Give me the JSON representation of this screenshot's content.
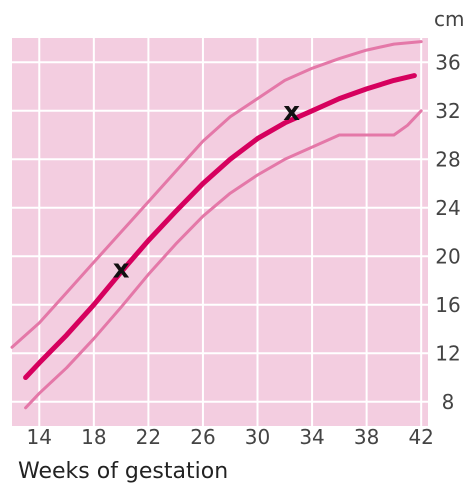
{
  "chart_data": {
    "type": "line",
    "xlabel": "Weeks of gestation",
    "ylabel": "cm",
    "xlim": [
      12,
      42.5
    ],
    "ylim": [
      6,
      38
    ],
    "x_ticks": [
      14,
      18,
      22,
      26,
      30,
      34,
      38,
      42
    ],
    "y_ticks": [
      8,
      12,
      16,
      20,
      24,
      28,
      32,
      36
    ],
    "grid": true,
    "background_color": "#f3cde0",
    "grid_color": "#ffffff",
    "series": [
      {
        "role": "upper-band",
        "color": "#e478a8",
        "x": [
          12,
          14,
          16,
          18,
          20,
          22,
          24,
          26,
          28,
          30,
          32,
          34,
          36,
          38,
          40,
          42
        ],
        "y": [
          12.5,
          14.5,
          17.0,
          19.5,
          22.0,
          24.5,
          27.0,
          29.5,
          31.5,
          33.0,
          34.5,
          35.5,
          36.3,
          37.0,
          37.5,
          37.7
        ]
      },
      {
        "role": "median",
        "color": "#d6005e",
        "x": [
          13,
          14,
          16,
          18,
          20,
          22,
          24,
          26,
          28,
          30,
          32,
          34,
          36,
          38,
          40,
          41.5
        ],
        "y": [
          10.0,
          11.2,
          13.5,
          16.0,
          18.7,
          21.3,
          23.7,
          26.0,
          28.0,
          29.7,
          31.0,
          32.0,
          33.0,
          33.8,
          34.5,
          34.9
        ]
      },
      {
        "role": "lower-band",
        "color": "#e478a8",
        "x": [
          13,
          14,
          16,
          18,
          20,
          22,
          24,
          26,
          28,
          30,
          32,
          34,
          36,
          38,
          40,
          41,
          42
        ],
        "y": [
          7.5,
          8.7,
          10.8,
          13.2,
          15.8,
          18.5,
          21.0,
          23.3,
          25.2,
          26.7,
          28.0,
          29.0,
          30.0,
          30.0,
          30.0,
          30.8,
          32.0
        ]
      }
    ],
    "markers": [
      {
        "label": "x",
        "x": 20,
        "y": 19
      },
      {
        "label": "x",
        "x": 32.5,
        "y": 32
      }
    ]
  }
}
